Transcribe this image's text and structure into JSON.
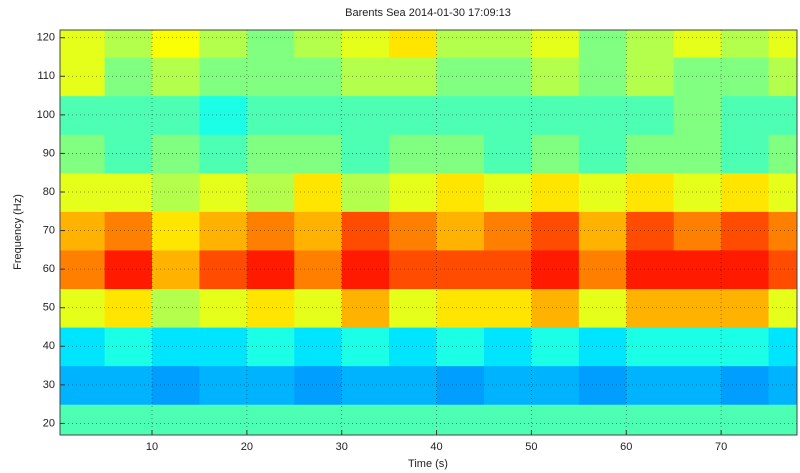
{
  "chart_data": {
    "type": "heatmap",
    "title": "Barents Sea 2014-01-30 17:09:13",
    "x_label": "Time (s)",
    "y_label": "Frequency (Hz)",
    "colormap": "jet",
    "grid": true,
    "x": [
      2.5,
      7.5,
      12.5,
      17.5,
      22.5,
      27.5,
      32.5,
      37.5,
      42.5,
      47.5,
      52.5,
      57.5,
      62.5,
      67.5,
      72.5,
      77.5
    ],
    "y": [
      20,
      30,
      40,
      50,
      60,
      70,
      80,
      90,
      100,
      110,
      120
    ],
    "z": [
      [
        0.45,
        0.45,
        0.45,
        0.45,
        0.45,
        0.45,
        0.45,
        0.45,
        0.45,
        0.45,
        0.45,
        0.45,
        0.45,
        0.45,
        0.45,
        0.45
      ],
      [
        0.3,
        0.3,
        0.28,
        0.3,
        0.3,
        0.28,
        0.3,
        0.3,
        0.28,
        0.3,
        0.3,
        0.28,
        0.3,
        0.3,
        0.28,
        0.3
      ],
      [
        0.35,
        0.4,
        0.35,
        0.35,
        0.4,
        0.35,
        0.4,
        0.35,
        0.4,
        0.35,
        0.4,
        0.35,
        0.4,
        0.4,
        0.4,
        0.35
      ],
      [
        0.6,
        0.65,
        0.55,
        0.6,
        0.65,
        0.6,
        0.7,
        0.6,
        0.65,
        0.65,
        0.7,
        0.6,
        0.7,
        0.7,
        0.7,
        0.6
      ],
      [
        0.75,
        0.85,
        0.7,
        0.8,
        0.85,
        0.75,
        0.85,
        0.8,
        0.8,
        0.8,
        0.85,
        0.75,
        0.85,
        0.85,
        0.85,
        0.8
      ],
      [
        0.7,
        0.75,
        0.65,
        0.7,
        0.75,
        0.7,
        0.8,
        0.75,
        0.7,
        0.75,
        0.8,
        0.7,
        0.8,
        0.75,
        0.8,
        0.75
      ],
      [
        0.6,
        0.6,
        0.55,
        0.6,
        0.55,
        0.65,
        0.55,
        0.6,
        0.65,
        0.6,
        0.65,
        0.6,
        0.65,
        0.6,
        0.65,
        0.6
      ],
      [
        0.5,
        0.45,
        0.5,
        0.45,
        0.5,
        0.5,
        0.45,
        0.5,
        0.5,
        0.45,
        0.5,
        0.45,
        0.5,
        0.5,
        0.45,
        0.5
      ],
      [
        0.45,
        0.45,
        0.45,
        0.4,
        0.45,
        0.45,
        0.45,
        0.45,
        0.45,
        0.45,
        0.45,
        0.45,
        0.45,
        0.5,
        0.45,
        0.45
      ],
      [
        0.6,
        0.5,
        0.55,
        0.5,
        0.5,
        0.5,
        0.55,
        0.55,
        0.5,
        0.5,
        0.55,
        0.5,
        0.55,
        0.5,
        0.5,
        0.55
      ],
      [
        0.6,
        0.55,
        0.62,
        0.55,
        0.5,
        0.55,
        0.6,
        0.65,
        0.55,
        0.55,
        0.6,
        0.5,
        0.55,
        0.6,
        0.55,
        0.6
      ]
    ],
    "xlim": [
      0.3,
      78
    ],
    "ylim": [
      17,
      122
    ],
    "xticks": [
      10,
      20,
      30,
      40,
      50,
      60,
      70
    ],
    "yticks": [
      20,
      30,
      40,
      50,
      60,
      70,
      80,
      90,
      100,
      110,
      120
    ]
  }
}
